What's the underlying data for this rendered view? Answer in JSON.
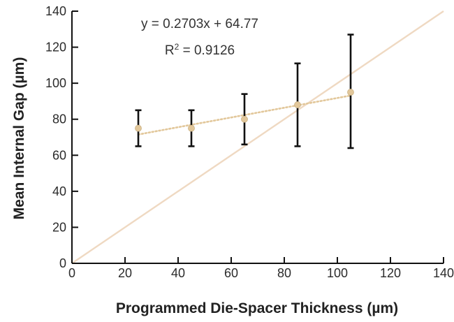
{
  "chart_data": {
    "type": "scatter",
    "xlabel": "Programmed Die-Spacer Thickness (µm)",
    "ylabel": "Mean Internal Gap (µm)",
    "xlim": [
      0,
      140
    ],
    "ylim": [
      0,
      140
    ],
    "x_ticks": [
      0,
      20,
      40,
      60,
      80,
      100,
      120,
      140
    ],
    "y_ticks": [
      0,
      20,
      40,
      60,
      80,
      100,
      120,
      140
    ],
    "grid": false,
    "series": [
      {
        "type": "scatter",
        "x": [
          25,
          45,
          65,
          85,
          105
        ],
        "y": [
          75,
          75,
          80,
          88,
          95
        ],
        "error_low": [
          65,
          65,
          66,
          65,
          64
        ],
        "error_high": [
          85,
          85,
          94,
          111,
          127
        ],
        "color": "#e2c79a",
        "error_color": "#111111"
      }
    ],
    "trendline": {
      "slope": 0.2703,
      "intercept": 64.77,
      "x_range": [
        25,
        105
      ],
      "style": "dotted",
      "color": "#e2c79a"
    },
    "identity_line": {
      "points": [
        [
          0,
          0
        ],
        [
          140,
          140
        ]
      ],
      "color": "#efd9c2"
    },
    "annotations": {
      "equation": "y = 0.2703x + 64.77",
      "r2_prefix": "R",
      "r2_sup": "2",
      "r2_value": " = 0.9126"
    }
  }
}
